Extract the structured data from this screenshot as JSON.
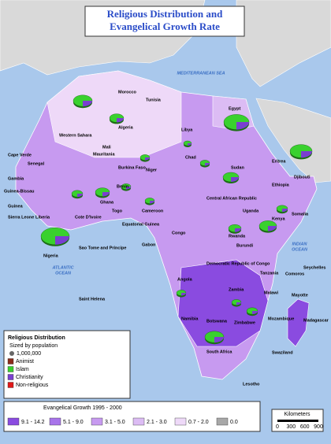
{
  "title": [
    "Religious Distribution and",
    "Evangelical Growth Rate"
  ],
  "countries": [
    "Morocco",
    "Tunisia",
    "Algeria",
    "Libya",
    "Egypt",
    "Western Sahara",
    "Mauritania",
    "Mali",
    "Cape Verde",
    "Senegal",
    "Gambia",
    "Guinea-Bissau",
    "Guinea",
    "Sierra Leone",
    "Liberia",
    "Cote D'Ivoire",
    "Burkina Faso",
    "Ghana",
    "Togo",
    "Benin",
    "Niger",
    "Nigeria",
    "Chad",
    "Sudan",
    "Eritrea",
    "Djibouti",
    "Ethiopia",
    "Somalia",
    "Central African Republic",
    "Cameroon",
    "Equatorial Guinea",
    "Sao Tome and Principe",
    "Gabon",
    "Congo",
    "Uganda",
    "Kenya",
    "Rwanda",
    "Burundi",
    "Democratic Republic of Congo",
    "Tanzania",
    "Comoros",
    "Seychelles",
    "Angola",
    "Zambia",
    "Malawi",
    "Mozambique",
    "Madagascar",
    "Mayotte",
    "Zimbabwe",
    "Namibia",
    "Botswana",
    "South Africa",
    "Swaziland",
    "Lesotho",
    "Saint Helena"
  ],
  "seas": [
    [
      "MEDITERRANEAN SEA"
    ],
    [
      "ATLANTIC",
      "OCEAN"
    ],
    [
      "INDIAN",
      "OCEAN"
    ]
  ],
  "legend": {
    "title": "Religious Distribution",
    "subtitle": "Sized by population",
    "size_label": "1,000,000",
    "items": [
      {
        "label": "Animist",
        "color": "#8b2a1a"
      },
      {
        "label": "Islam",
        "color": "#39d12e"
      },
      {
        "label": "Christianity",
        "color": "#7a3fd0"
      },
      {
        "label": "Non-religious",
        "color": "#e01818"
      }
    ]
  },
  "growth": {
    "title": "Evangelical Growth 1995 - 2000",
    "classes": [
      {
        "label": "9.1 - 14.2",
        "color": "#8a4be0"
      },
      {
        "label": "5.1 - 9.0",
        "color": "#a874ea"
      },
      {
        "label": "3.1 - 5.0",
        "color": "#c79af0"
      },
      {
        "label": "2.1 - 3.0",
        "color": "#dcbcf4"
      },
      {
        "label": "0.7 - 2.0",
        "color": "#eed9f8"
      },
      {
        "label": "0.0",
        "color": "#a8a8a8"
      }
    ]
  },
  "scale": {
    "title": "Kilometers",
    "ticks": [
      "0",
      "300",
      "600",
      "900"
    ]
  }
}
